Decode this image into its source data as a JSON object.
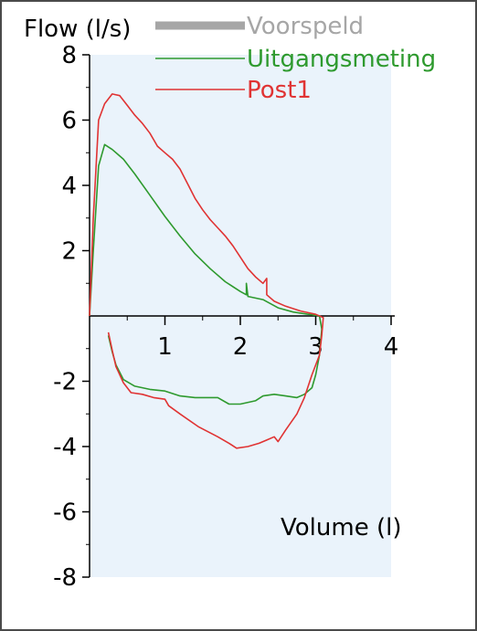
{
  "chart_data": {
    "type": "line",
    "title": "",
    "ylabel": "Flow (l/s)",
    "xlabel": "Volume (l)",
    "xlim": [
      0,
      4
    ],
    "ylim": [
      -8,
      8
    ],
    "x_ticks": [
      1,
      2,
      3,
      4
    ],
    "y_ticks": [
      8,
      6,
      4,
      2,
      -2,
      -4,
      -6,
      -8
    ],
    "grid": false,
    "legend_position": "top-right",
    "plot_background": "#eaf3fb",
    "series": [
      {
        "name": "Voorspeld",
        "color": "#a6a6a6",
        "style": "thick-bar",
        "points": []
      },
      {
        "name": "Uitgangsmeting",
        "color": "#2e9a2e",
        "points": [
          [
            0.0,
            0.0
          ],
          [
            0.05,
            2.0
          ],
          [
            0.12,
            4.6
          ],
          [
            0.2,
            5.25
          ],
          [
            0.3,
            5.1
          ],
          [
            0.45,
            4.8
          ],
          [
            0.6,
            4.35
          ],
          [
            0.8,
            3.7
          ],
          [
            1.0,
            3.05
          ],
          [
            1.2,
            2.45
          ],
          [
            1.4,
            1.9
          ],
          [
            1.6,
            1.45
          ],
          [
            1.8,
            1.05
          ],
          [
            2.0,
            0.75
          ],
          [
            2.08,
            0.65
          ],
          [
            2.08,
            1.0
          ],
          [
            2.1,
            0.6
          ],
          [
            2.3,
            0.5
          ],
          [
            2.5,
            0.25
          ],
          [
            2.7,
            0.12
          ],
          [
            2.9,
            0.05
          ],
          [
            3.05,
            0.0
          ],
          [
            3.08,
            -0.4
          ],
          [
            3.05,
            -1.2
          ],
          [
            3.0,
            -1.8
          ],
          [
            2.95,
            -2.2
          ],
          [
            2.85,
            -2.4
          ],
          [
            2.75,
            -2.5
          ],
          [
            2.6,
            -2.45
          ],
          [
            2.45,
            -2.4
          ],
          [
            2.3,
            -2.45
          ],
          [
            2.2,
            -2.6
          ],
          [
            2.0,
            -2.7
          ],
          [
            1.85,
            -2.7
          ],
          [
            1.7,
            -2.5
          ],
          [
            1.4,
            -2.5
          ],
          [
            1.2,
            -2.45
          ],
          [
            1.0,
            -2.3
          ],
          [
            0.8,
            -2.25
          ],
          [
            0.6,
            -2.15
          ],
          [
            0.45,
            -1.95
          ],
          [
            0.35,
            -1.5
          ],
          [
            0.3,
            -1.1
          ],
          [
            0.25,
            -0.6
          ]
        ]
      },
      {
        "name": "Post1",
        "color": "#e03333",
        "points": [
          [
            0.0,
            0.0
          ],
          [
            0.05,
            3.0
          ],
          [
            0.12,
            6.0
          ],
          [
            0.2,
            6.5
          ],
          [
            0.3,
            6.8
          ],
          [
            0.4,
            6.75
          ],
          [
            0.5,
            6.45
          ],
          [
            0.6,
            6.15
          ],
          [
            0.7,
            5.9
          ],
          [
            0.8,
            5.6
          ],
          [
            0.9,
            5.2
          ],
          [
            1.0,
            5.0
          ],
          [
            1.1,
            4.8
          ],
          [
            1.2,
            4.5
          ],
          [
            1.3,
            4.05
          ],
          [
            1.4,
            3.6
          ],
          [
            1.5,
            3.25
          ],
          [
            1.6,
            2.95
          ],
          [
            1.7,
            2.7
          ],
          [
            1.8,
            2.45
          ],
          [
            1.9,
            2.15
          ],
          [
            2.0,
            1.8
          ],
          [
            2.1,
            1.45
          ],
          [
            2.2,
            1.2
          ],
          [
            2.3,
            1.0
          ],
          [
            2.35,
            1.15
          ],
          [
            2.35,
            0.65
          ],
          [
            2.45,
            0.45
          ],
          [
            2.6,
            0.3
          ],
          [
            2.8,
            0.15
          ],
          [
            3.0,
            0.05
          ],
          [
            3.1,
            -0.05
          ],
          [
            3.08,
            -0.6
          ],
          [
            3.05,
            -1.2
          ],
          [
            2.95,
            -1.8
          ],
          [
            2.85,
            -2.5
          ],
          [
            2.75,
            -3.0
          ],
          [
            2.6,
            -3.5
          ],
          [
            2.5,
            -3.85
          ],
          [
            2.45,
            -3.7
          ],
          [
            2.35,
            -3.8
          ],
          [
            2.25,
            -3.9
          ],
          [
            2.1,
            -4.0
          ],
          [
            1.95,
            -4.05
          ],
          [
            1.85,
            -3.9
          ],
          [
            1.7,
            -3.7
          ],
          [
            1.45,
            -3.4
          ],
          [
            1.2,
            -3.0
          ],
          [
            1.05,
            -2.75
          ],
          [
            1.0,
            -2.55
          ],
          [
            0.85,
            -2.5
          ],
          [
            0.7,
            -2.4
          ],
          [
            0.55,
            -2.35
          ],
          [
            0.45,
            -2.05
          ],
          [
            0.35,
            -1.55
          ],
          [
            0.3,
            -1.05
          ],
          [
            0.25,
            -0.5
          ]
        ]
      }
    ]
  }
}
